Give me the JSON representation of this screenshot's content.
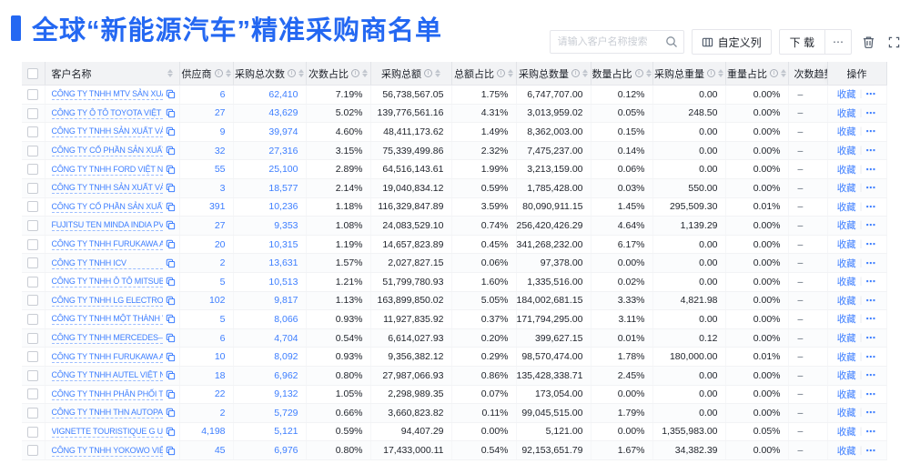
{
  "page": {
    "title": "全球“新能源汽车”精准采购商名单"
  },
  "toolbar": {
    "search_placeholder": "请输入客户名称搜索",
    "customize_columns_label": "自定义列",
    "download_label": "下 载",
    "download_more_label": "⋯"
  },
  "colors": {
    "accent_blue": "#2468F2",
    "link_blue": "#3D7EFF",
    "text_dark": "#1D2129",
    "header_bg": "#F2F3F5"
  },
  "table": {
    "favorite_label": "收藏",
    "row_more_label": "⋯",
    "columns": [
      {
        "key": "name",
        "label": "客户名称",
        "info": false,
        "sort": true,
        "align": "left"
      },
      {
        "key": "supplier",
        "label": "供应商",
        "info": true,
        "sort": true,
        "align": "right"
      },
      {
        "key": "total_count",
        "label": "采购总次数",
        "info": true,
        "sort": true,
        "align": "right"
      },
      {
        "key": "count_pct",
        "label": "次数占比",
        "info": true,
        "sort": true,
        "align": "right"
      },
      {
        "key": "total_amount",
        "label": "采购总额",
        "info": true,
        "sort": true,
        "align": "right"
      },
      {
        "key": "amount_pct",
        "label": "总额占比",
        "info": true,
        "sort": true,
        "align": "right"
      },
      {
        "key": "total_qty",
        "label": "采购总数量",
        "info": true,
        "sort": true,
        "align": "right"
      },
      {
        "key": "qty_pct",
        "label": "数量占比",
        "info": true,
        "sort": true,
        "align": "right"
      },
      {
        "key": "total_weight",
        "label": "采购总重量",
        "info": true,
        "sort": true,
        "align": "right"
      },
      {
        "key": "weight_pct",
        "label": "重量占比",
        "info": true,
        "sort": true,
        "align": "right"
      },
      {
        "key": "trend",
        "label": "次数趋势",
        "info": false,
        "sort": false,
        "align": "left"
      },
      {
        "key": "action",
        "label": "操作",
        "info": false,
        "sort": false,
        "align": "center"
      }
    ],
    "rows": [
      {
        "name": "CÔNG TY TNHH MTV SẢN XUẤ...",
        "supplier": "6",
        "total_count": "62,410",
        "count_pct": "7.19%",
        "total_amount": "56,738,567.05",
        "amount_pct": "1.75%",
        "total_qty": "6,747,707.00",
        "qty_pct": "0.12%",
        "total_weight": "0.00",
        "weight_pct": "0.00%",
        "trend": "–"
      },
      {
        "name": "CÔNG TY Ô TÔ TOYOTA VIỆT ...",
        "supplier": "27",
        "total_count": "43,629",
        "count_pct": "5.02%",
        "total_amount": "139,776,561.16",
        "amount_pct": "4.31%",
        "total_qty": "3,013,959.02",
        "qty_pct": "0.05%",
        "total_weight": "248.50",
        "weight_pct": "0.00%",
        "trend": "–"
      },
      {
        "name": "CÔNG TY TNHH SẢN XUẤT VÀ ...",
        "supplier": "9",
        "total_count": "39,974",
        "count_pct": "4.60%",
        "total_amount": "48,411,173.62",
        "amount_pct": "1.49%",
        "total_qty": "8,362,003.00",
        "qty_pct": "0.15%",
        "total_weight": "0.00",
        "weight_pct": "0.00%",
        "trend": "–"
      },
      {
        "name": "CÔNG TY CỔ PHẦN SẢN XUẤT...",
        "supplier": "32",
        "total_count": "27,316",
        "count_pct": "3.15%",
        "total_amount": "75,339,499.86",
        "amount_pct": "2.32%",
        "total_qty": "7,475,237.00",
        "qty_pct": "0.14%",
        "total_weight": "0.00",
        "weight_pct": "0.00%",
        "trend": "–"
      },
      {
        "name": "CÔNG TY TNHH FORD VIỆT NAM",
        "supplier": "55",
        "total_count": "25,100",
        "count_pct": "2.89%",
        "total_amount": "64,516,143.61",
        "amount_pct": "1.99%",
        "total_qty": "3,213,159.00",
        "qty_pct": "0.06%",
        "total_weight": "0.00",
        "weight_pct": "0.00%",
        "trend": "–"
      },
      {
        "name": "CÔNG TY TNHH SẢN XUẤT VÀ ...",
        "supplier": "3",
        "total_count": "18,577",
        "count_pct": "2.14%",
        "total_amount": "19,040,834.12",
        "amount_pct": "0.59%",
        "total_qty": "1,785,428.00",
        "qty_pct": "0.03%",
        "total_weight": "550.00",
        "weight_pct": "0.00%",
        "trend": "–"
      },
      {
        "name": "CÔNG TY CỔ PHẦN SẢN XUẤT...",
        "supplier": "391",
        "total_count": "10,236",
        "count_pct": "1.18%",
        "total_amount": "116,329,847.89",
        "amount_pct": "3.59%",
        "total_qty": "80,090,911.15",
        "qty_pct": "1.45%",
        "total_weight": "295,509.30",
        "weight_pct": "0.01%",
        "trend": "–"
      },
      {
        "name": "FUJITSU TEN MINDA INDIA PVT...",
        "supplier": "27",
        "total_count": "9,353",
        "count_pct": "1.08%",
        "total_amount": "24,083,529.10",
        "amount_pct": "0.74%",
        "total_qty": "256,420,426.29",
        "qty_pct": "4.64%",
        "total_weight": "1,139.29",
        "weight_pct": "0.00%",
        "trend": "–"
      },
      {
        "name": "CÔNG TY TNHH FURUKAWA A...",
        "supplier": "20",
        "total_count": "10,315",
        "count_pct": "1.19%",
        "total_amount": "14,657,823.89",
        "amount_pct": "0.45%",
        "total_qty": "341,268,232.00",
        "qty_pct": "6.17%",
        "total_weight": "0.00",
        "weight_pct": "0.00%",
        "trend": "–"
      },
      {
        "name": "CÔNG TY TNHH ICV",
        "supplier": "2",
        "total_count": "13,631",
        "count_pct": "1.57%",
        "total_amount": "2,027,827.15",
        "amount_pct": "0.06%",
        "total_qty": "97,378.00",
        "qty_pct": "0.00%",
        "total_weight": "0.00",
        "weight_pct": "0.00%",
        "trend": "–"
      },
      {
        "name": "CÔNG TY TNHH Ô TÔ MITSUBI...",
        "supplier": "5",
        "total_count": "10,513",
        "count_pct": "1.21%",
        "total_amount": "51,799,780.93",
        "amount_pct": "1.60%",
        "total_qty": "1,335,516.00",
        "qty_pct": "0.02%",
        "total_weight": "0.00",
        "weight_pct": "0.00%",
        "trend": "–"
      },
      {
        "name": "CÔNG TY TNHH LG ELECTRON...",
        "supplier": "102",
        "total_count": "9,817",
        "count_pct": "1.13%",
        "total_amount": "163,899,850.02",
        "amount_pct": "5.05%",
        "total_qty": "184,002,681.15",
        "qty_pct": "3.33%",
        "total_weight": "4,821.98",
        "weight_pct": "0.00%",
        "trend": "–"
      },
      {
        "name": "CÔNG TY TNHH MỘT THÀNH V...",
        "supplier": "5",
        "total_count": "8,066",
        "count_pct": "0.93%",
        "total_amount": "11,927,835.92",
        "amount_pct": "0.37%",
        "total_qty": "171,794,295.00",
        "qty_pct": "3.11%",
        "total_weight": "0.00",
        "weight_pct": "0.00%",
        "trend": "–"
      },
      {
        "name": "CÔNG TY TNHH MERCEDES–B...",
        "supplier": "6",
        "total_count": "4,704",
        "count_pct": "0.54%",
        "total_amount": "6,614,027.93",
        "amount_pct": "0.20%",
        "total_qty": "399,627.15",
        "qty_pct": "0.01%",
        "total_weight": "0.12",
        "weight_pct": "0.00%",
        "trend": "–"
      },
      {
        "name": "CÔNG TY TNHH FURUKAWA A...",
        "supplier": "10",
        "total_count": "8,092",
        "count_pct": "0.93%",
        "total_amount": "9,356,382.12",
        "amount_pct": "0.29%",
        "total_qty": "98,570,474.00",
        "qty_pct": "1.78%",
        "total_weight": "180,000.00",
        "weight_pct": "0.01%",
        "trend": "–"
      },
      {
        "name": "CÔNG TY TNHH AUTEL VIỆT N...",
        "supplier": "18",
        "total_count": "6,962",
        "count_pct": "0.80%",
        "total_amount": "27,987,066.93",
        "amount_pct": "0.86%",
        "total_qty": "135,428,338.71",
        "qty_pct": "2.45%",
        "total_weight": "0.00",
        "weight_pct": "0.00%",
        "trend": "–"
      },
      {
        "name": "CÔNG TY TNHH PHÂN PHỐI T...",
        "supplier": "22",
        "total_count": "9,132",
        "count_pct": "1.05%",
        "total_amount": "2,298,989.35",
        "amount_pct": "0.07%",
        "total_qty": "173,054.00",
        "qty_pct": "0.00%",
        "total_weight": "0.00",
        "weight_pct": "0.00%",
        "trend": "–"
      },
      {
        "name": "CÔNG TY TNHH THN AUTOPAR...",
        "supplier": "2",
        "total_count": "5,729",
        "count_pct": "0.66%",
        "total_amount": "3,660,823.82",
        "amount_pct": "0.11%",
        "total_qty": "99,045,515.00",
        "qty_pct": "1.79%",
        "total_weight": "0.00",
        "weight_pct": "0.00%",
        "trend": "–"
      },
      {
        "name": "VIGNETTE TOURISTIQUE G UNI...",
        "supplier": "4,198",
        "total_count": "5,121",
        "count_pct": "0.59%",
        "total_amount": "94,407.29",
        "amount_pct": "0.00%",
        "total_qty": "5,121.00",
        "qty_pct": "0.00%",
        "total_weight": "1,355,983.00",
        "weight_pct": "0.05%",
        "trend": "–"
      },
      {
        "name": "CÔNG TY TNHH YOKOWO VIỆT...",
        "supplier": "45",
        "total_count": "6,976",
        "count_pct": "0.80%",
        "total_amount": "17,433,000.11",
        "amount_pct": "0.54%",
        "total_qty": "92,153,651.79",
        "qty_pct": "1.67%",
        "total_weight": "34,382.39",
        "weight_pct": "0.00%",
        "trend": "–"
      }
    ]
  }
}
